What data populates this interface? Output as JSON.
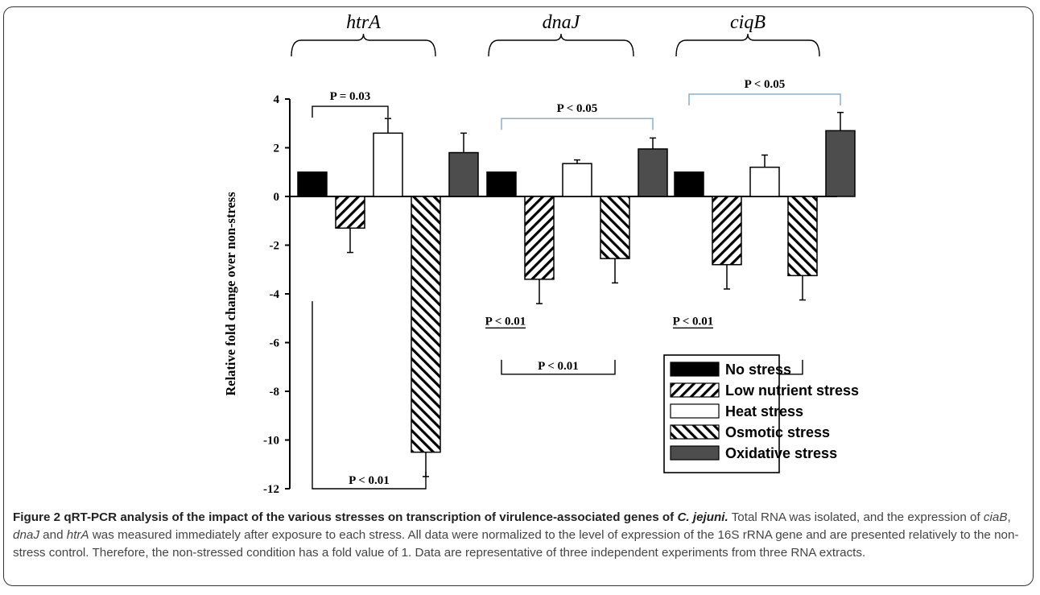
{
  "chart_data": {
    "type": "bar",
    "categories": [
      "htrA",
      "dnaJ",
      "ciqB"
    ],
    "series": [
      {
        "name": "No stress",
        "values": [
          1,
          1,
          1
        ],
        "errors": [
          0,
          0,
          0
        ],
        "pattern": "solid-black"
      },
      {
        "name": "Low nutrient stress",
        "values": [
          -1.3,
          -3.4,
          -2.8
        ],
        "errors": [
          1.0,
          1.0,
          1.0
        ],
        "pattern": "hatch-forward"
      },
      {
        "name": "Heat stress",
        "values": [
          2.6,
          1.35,
          1.2
        ],
        "errors": [
          0.6,
          0.15,
          0.5
        ],
        "pattern": "white"
      },
      {
        "name": "Osmotic stress",
        "values": [
          -10.5,
          -2.55,
          -3.25
        ],
        "errors": [
          1.0,
          1.0,
          1.0
        ],
        "pattern": "hatch-backward"
      },
      {
        "name": "Oxidative stress",
        "values": [
          1.8,
          1.95,
          2.7
        ],
        "errors": [
          0.8,
          0.45,
          0.75
        ],
        "pattern": "solid-gray"
      }
    ],
    "ylabel": "Relative fold change over non-stress",
    "ylim": [
      -12,
      4
    ],
    "yticks": [
      4,
      2,
      0,
      -2,
      -4,
      -6,
      -8,
      -10,
      -12
    ],
    "legend_position": "bottom-right",
    "annotations": [
      {
        "text": "P = 0.03",
        "from": [
          "htrA",
          "No stress"
        ],
        "to": [
          "htrA",
          "Heat stress"
        ],
        "y": 3.7
      },
      {
        "text": "P < 0.01",
        "from": [
          "htrA",
          "No stress"
        ],
        "to": [
          "htrA",
          "Osmotic stress"
        ],
        "y": -12
      },
      {
        "text": "P < 0.05",
        "from": [
          "dnaJ",
          "No stress"
        ],
        "to": [
          "dnaJ",
          "Oxidative stress"
        ],
        "y": 3.2
      },
      {
        "text": "P < 0.01",
        "from": [
          "dnaJ",
          "No stress"
        ],
        "to": [
          "dnaJ",
          "Low nutrient stress"
        ],
        "y": -5.4
      },
      {
        "text": "P < 0.01",
        "from": [
          "dnaJ",
          "No stress"
        ],
        "to": [
          "dnaJ",
          "Osmotic stress"
        ],
        "y": -7.3
      },
      {
        "text": "P < 0.05",
        "from": [
          "ciqB",
          "No stress"
        ],
        "to": [
          "ciqB",
          "Oxidative stress"
        ],
        "y": 4.2
      },
      {
        "text": "P < 0.01",
        "from": [
          "ciqB",
          "No stress"
        ],
        "to": [
          "ciqB",
          "Low nutrient stress"
        ],
        "y": -5.4
      },
      {
        "text": "P < 0.01",
        "from": [
          "ciqB",
          "No stress"
        ],
        "to": [
          "ciqB",
          "Osmotic stress"
        ],
        "y": -7.3
      }
    ],
    "colors": {
      "solid_black": "#000000",
      "solid_gray": "#4d4d4d",
      "white": "#ffffff",
      "bracket_blue": "#7fa8cf"
    }
  },
  "caption": {
    "label": "Figure 2",
    "title_prefix": "qRT-PCR analysis of the impact of the various stresses on transcription of virulence-associated genes of",
    "organism": "C. jejuni.",
    "text_1": "Total RNA was isolated, and the expression of",
    "gene_1": "ciaB",
    "sep_1": ",",
    "gene_2": "dnaJ",
    "sep_2": "and",
    "gene_3": "htrA",
    "text_2": "was measured immediately after exposure to each stress. All data were normalized to the level of expression of the 16S rRNA gene and are presented relatively to the non-stress control. Therefore, the non-stressed condition has a fold value of 1. Data are representative of three independent experiments from three RNA extracts."
  }
}
